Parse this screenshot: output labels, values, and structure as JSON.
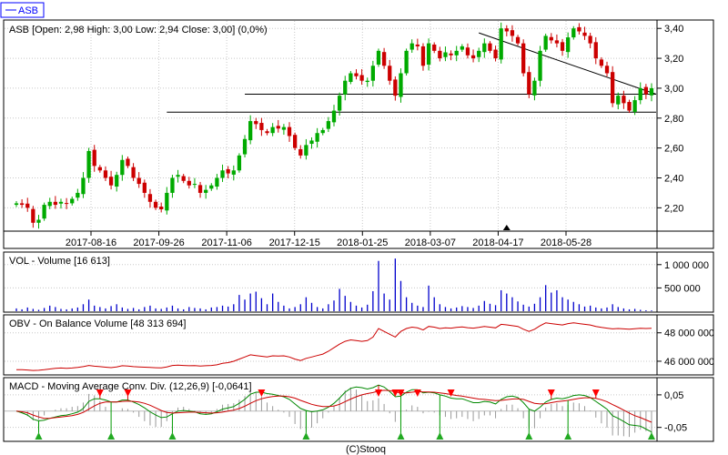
{
  "legend": {
    "label": "ASB",
    "color": "#0000ff"
  },
  "footer": "(C)Stooq",
  "chart_data": [
    {
      "type": "candlestick",
      "title": "ASB [Open: 2,98  High: 3,00  Low: 2,94  Close: 3,00] (0,0%)",
      "x_tick_labels": [
        "2017-08-16",
        "2017-09-26",
        "2017-11-06",
        "2017-12-15",
        "2018-01-25",
        "2018-03-07",
        "2018-04-17",
        "2018-05-28"
      ],
      "y_tick_labels": [
        "3,40",
        "3,20",
        "3,00",
        "2,80",
        "2,60",
        "2,40",
        "2,20"
      ],
      "y_ticks": [
        3.4,
        3.2,
        3.0,
        2.8,
        2.6,
        2.4,
        2.2
      ],
      "ylim": [
        2.05,
        3.45
      ],
      "grid": true,
      "close_series": [
        2.23,
        2.22,
        2.2,
        2.1,
        2.12,
        2.22,
        2.24,
        2.22,
        2.24,
        2.23,
        2.26,
        2.3,
        2.4,
        2.58,
        2.48,
        2.45,
        2.4,
        2.35,
        2.42,
        2.52,
        2.48,
        2.4,
        2.36,
        2.3,
        2.24,
        2.2,
        2.19,
        2.3,
        2.4,
        2.42,
        2.38,
        2.35,
        2.36,
        2.3,
        2.32,
        2.35,
        2.4,
        2.45,
        2.43,
        2.45,
        2.55,
        2.66,
        2.78,
        2.76,
        2.72,
        2.7,
        2.74,
        2.73,
        2.74,
        2.68,
        2.6,
        2.55,
        2.62,
        2.65,
        2.7,
        2.72,
        2.78,
        2.85,
        2.95,
        3.05,
        3.1,
        3.08,
        3.05,
        3.05,
        3.15,
        3.25,
        3.15,
        3.05,
        2.95,
        3.1,
        3.25,
        3.3,
        3.28,
        3.15,
        3.3,
        3.25,
        3.2,
        3.24,
        3.22,
        3.25,
        3.28,
        3.22,
        3.2,
        3.25,
        3.3,
        3.25,
        3.2,
        3.4,
        3.38,
        3.35,
        3.3,
        3.1,
        2.96,
        3.05,
        3.25,
        3.35,
        3.32,
        3.3,
        3.25,
        3.34,
        3.4,
        3.38,
        3.35,
        3.3,
        3.2,
        3.15,
        3.1,
        2.9,
        2.95,
        2.9,
        2.85,
        2.92,
        3.0,
        2.96,
        3.0
      ],
      "horizontal_levels": [
        {
          "value": 2.96,
          "from_index": 41
        },
        {
          "value": 2.84,
          "from_index": 27
        }
      ],
      "trend_line": {
        "from": [
          83,
          3.37
        ],
        "to": [
          110,
          2.96
        ]
      },
      "marker": {
        "type": "triangle-up",
        "at_index": 88
      }
    },
    {
      "type": "bar",
      "title": "VOL - Volume [16 613]",
      "y_tick_labels": [
        "1 000 000",
        "500 000"
      ],
      "y_ticks": [
        1000000,
        500000
      ],
      "ylim": [
        0,
        1250000
      ],
      "color": "#0000cc",
      "values": [
        60000,
        40000,
        80000,
        50000,
        30000,
        70000,
        120000,
        90000,
        50000,
        40000,
        60000,
        80000,
        150000,
        250000,
        120000,
        90000,
        60000,
        110000,
        150000,
        80000,
        50000,
        70000,
        40000,
        90000,
        120000,
        60000,
        50000,
        80000,
        120000,
        60000,
        40000,
        90000,
        70000,
        60000,
        40000,
        80000,
        90000,
        120000,
        100000,
        150000,
        350000,
        250000,
        380000,
        420000,
        280000,
        150000,
        380000,
        200000,
        120000,
        60000,
        90000,
        150000,
        300000,
        180000,
        90000,
        60000,
        150000,
        230000,
        480000,
        330000,
        200000,
        120000,
        80000,
        140000,
        430000,
        1080000,
        380000,
        250000,
        1130000,
        650000,
        300000,
        180000,
        120000,
        90000,
        550000,
        300000,
        150000,
        90000,
        60000,
        80000,
        110000,
        90000,
        70000,
        120000,
        220000,
        160000,
        130000,
        450000,
        380000,
        300000,
        210000,
        140000,
        100000,
        160000,
        300000,
        560000,
        400000,
        450000,
        300000,
        250000,
        200000,
        150000,
        100000,
        120000,
        80000,
        60000,
        80000,
        150000,
        90000,
        60000,
        40000,
        50000,
        30000,
        20000,
        16613
      ]
    },
    {
      "type": "line",
      "title": "OBV - On Balance Volume [48 313 694]",
      "y_tick_labels": [
        "48 000 000",
        "46 000 000"
      ],
      "y_ticks": [
        48000000,
        46000000
      ],
      "ylim": [
        45100000,
        49200000
      ],
      "color": "#cc0000",
      "values": [
        45400000,
        45400000,
        45380000,
        45350000,
        45360000,
        45400000,
        45450000,
        45500000,
        45520000,
        45500000,
        45520000,
        45560000,
        45620000,
        45700000,
        45650000,
        45620000,
        45580000,
        45550000,
        45600000,
        45680000,
        45660000,
        45620000,
        45600000,
        45580000,
        45560000,
        45540000,
        45530000,
        45600000,
        45700000,
        45720000,
        45700000,
        45680000,
        45690000,
        45660000,
        45680000,
        45700000,
        45750000,
        45850000,
        45900000,
        46000000,
        46150000,
        46300000,
        46450000,
        46400000,
        46350000,
        46300000,
        46380000,
        46360000,
        46380000,
        46300000,
        46150000,
        46050000,
        46200000,
        46300000,
        46400000,
        46500000,
        46700000,
        46950000,
        47200000,
        47400000,
        47500000,
        47450000,
        47400000,
        47450000,
        47700000,
        48300000,
        48100000,
        47900000,
        47700000,
        48100000,
        48300000,
        48400000,
        48350000,
        48200000,
        48450000,
        48400000,
        48300000,
        48350000,
        48330000,
        48380000,
        48420000,
        48360000,
        48330000,
        48380000,
        48450000,
        48400000,
        48350000,
        48600000,
        48560000,
        48500000,
        48450000,
        48250000,
        48100000,
        48250000,
        48500000,
        48700000,
        48650000,
        48600000,
        48550000,
        48650000,
        48700000,
        48650000,
        48600000,
        48550000,
        48450000,
        48380000,
        48330000,
        48280000,
        48300000,
        48280000,
        48260000,
        48290000,
        48320000,
        48300000,
        48313694
      ]
    },
    {
      "type": "line",
      "title": "MACD - Moving Average Conv. Div. (12,26,9) [-0,0641]",
      "y_tick_labels": [
        "0,05",
        "-0,05"
      ],
      "y_ticks": [
        0.05,
        -0.05
      ],
      "ylim": [
        -0.09,
        0.1
      ],
      "series": [
        {
          "color": "#008800",
          "values": [
            0.0,
            -0.005,
            -0.012,
            -0.025,
            -0.03,
            -0.028,
            -0.022,
            -0.018,
            -0.014,
            -0.012,
            -0.008,
            -0.003,
            0.008,
            0.03,
            0.038,
            0.038,
            0.034,
            0.028,
            0.028,
            0.034,
            0.034,
            0.028,
            0.02,
            0.01,
            -0.002,
            -0.012,
            -0.02,
            -0.018,
            -0.008,
            0.0,
            0.002,
            0.0,
            -0.002,
            -0.008,
            -0.01,
            -0.008,
            -0.002,
            0.006,
            0.01,
            0.014,
            0.024,
            0.036,
            0.052,
            0.058,
            0.058,
            0.054,
            0.052,
            0.048,
            0.044,
            0.036,
            0.022,
            0.008,
            0.002,
            -0.002,
            0.0,
            0.004,
            0.012,
            0.024,
            0.04,
            0.058,
            0.07,
            0.074,
            0.072,
            0.068,
            0.072,
            0.08,
            0.074,
            0.06,
            0.044,
            0.046,
            0.058,
            0.066,
            0.066,
            0.056,
            0.058,
            0.056,
            0.05,
            0.046,
            0.04,
            0.038,
            0.038,
            0.032,
            0.026,
            0.026,
            0.03,
            0.028,
            0.022,
            0.036,
            0.044,
            0.046,
            0.042,
            0.026,
            0.006,
            0.0,
            0.012,
            0.028,
            0.036,
            0.04,
            0.038,
            0.042,
            0.048,
            0.05,
            0.048,
            0.042,
            0.03,
            0.018,
            0.006,
            -0.014,
            -0.022,
            -0.032,
            -0.042,
            -0.044,
            -0.046,
            -0.055,
            -0.0641
          ]
        },
        {
          "color": "#cc0000",
          "values": [
            0.0,
            -0.002,
            -0.005,
            -0.012,
            -0.018,
            -0.022,
            -0.022,
            -0.02,
            -0.018,
            -0.016,
            -0.014,
            -0.01,
            -0.004,
            0.006,
            0.016,
            0.024,
            0.028,
            0.028,
            0.028,
            0.03,
            0.031,
            0.03,
            0.028,
            0.024,
            0.018,
            0.01,
            0.002,
            -0.004,
            -0.006,
            -0.005,
            -0.004,
            -0.003,
            -0.003,
            -0.004,
            -0.005,
            -0.006,
            -0.005,
            -0.003,
            0.0,
            0.003,
            0.008,
            0.015,
            0.024,
            0.032,
            0.038,
            0.042,
            0.045,
            0.046,
            0.046,
            0.044,
            0.04,
            0.033,
            0.027,
            0.021,
            0.017,
            0.014,
            0.014,
            0.016,
            0.021,
            0.029,
            0.037,
            0.044,
            0.05,
            0.054,
            0.057,
            0.062,
            0.064,
            0.063,
            0.059,
            0.056,
            0.056,
            0.058,
            0.06,
            0.059,
            0.059,
            0.058,
            0.056,
            0.054,
            0.051,
            0.048,
            0.046,
            0.043,
            0.04,
            0.037,
            0.036,
            0.034,
            0.032,
            0.033,
            0.035,
            0.037,
            0.038,
            0.036,
            0.03,
            0.024,
            0.022,
            0.023,
            0.026,
            0.029,
            0.031,
            0.033,
            0.036,
            0.039,
            0.041,
            0.041,
            0.039,
            0.035,
            0.029,
            0.02,
            0.012,
            0.003,
            -0.006,
            -0.014,
            -0.02,
            -0.027,
            -0.034
          ]
        }
      ],
      "signals": [
        {
          "type": "sell",
          "at_index": 15
        },
        {
          "type": "sell",
          "at_index": 20
        },
        {
          "type": "sell",
          "at_index": 44
        },
        {
          "type": "sell",
          "at_index": 65
        },
        {
          "type": "sell",
          "at_index": 68
        },
        {
          "type": "sell",
          "at_index": 69
        },
        {
          "type": "sell",
          "at_index": 72
        },
        {
          "type": "sell",
          "at_index": 78
        },
        {
          "type": "sell",
          "at_index": 96
        },
        {
          "type": "sell",
          "at_index": 104
        },
        {
          "type": "buy",
          "at_index": 4
        },
        {
          "type": "buy",
          "at_index": 17
        },
        {
          "type": "buy",
          "at_index": 28
        },
        {
          "type": "buy",
          "at_index": 52
        },
        {
          "type": "buy",
          "at_index": 69
        },
        {
          "type": "buy",
          "at_index": 76
        },
        {
          "type": "buy",
          "at_index": 92
        },
        {
          "type": "buy",
          "at_index": 99
        },
        {
          "type": "buy",
          "at_index": 114
        }
      ]
    }
  ]
}
